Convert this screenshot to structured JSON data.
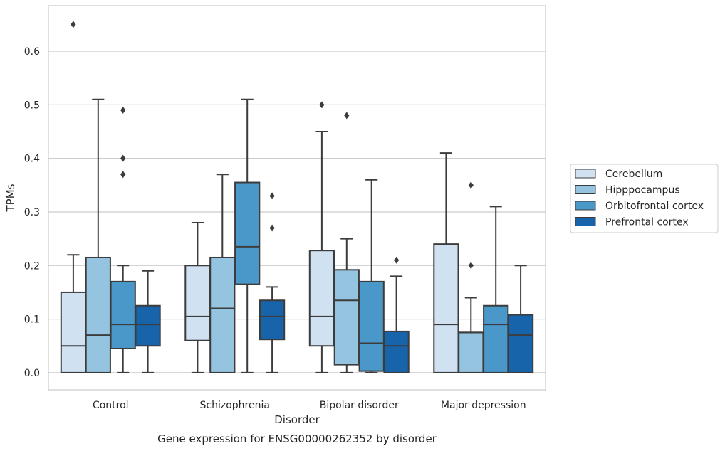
{
  "chart_data": {
    "type": "box",
    "title": "",
    "caption": "Gene expression for ENSG00000262352 by disorder",
    "xlabel": "Disorder",
    "ylabel": "TPMs",
    "ylim": [
      -0.032,
      0.685
    ],
    "yticks": [
      "0.0",
      "0.1",
      "0.2",
      "0.3",
      "0.4",
      "0.5",
      "0.6"
    ],
    "grid": "horizontal",
    "legend_position": "right",
    "categories": [
      "Control",
      "Schizophrenia",
      "Bipolar disorder",
      "Major depression"
    ],
    "series": [
      {
        "name": "Cerebellum",
        "color": "#d0e1f2",
        "boxes": [
          {
            "whislo": 0.0,
            "q1": 0.0,
            "med": 0.05,
            "q3": 0.15,
            "whishi": 0.22,
            "fliers": [
              0.65
            ]
          },
          {
            "whislo": 0.0,
            "q1": 0.06,
            "med": 0.105,
            "q3": 0.2,
            "whishi": 0.28,
            "fliers": []
          },
          {
            "whislo": 0.0,
            "q1": 0.05,
            "med": 0.105,
            "q3": 0.228,
            "whishi": 0.45,
            "fliers": [
              0.5
            ]
          },
          {
            "whislo": 0.0,
            "q1": 0.0,
            "med": 0.09,
            "q3": 0.24,
            "whishi": 0.41,
            "fliers": []
          }
        ]
      },
      {
        "name": "Hipppocampus",
        "color": "#94c4df",
        "boxes": [
          {
            "whislo": 0.0,
            "q1": 0.0,
            "med": 0.07,
            "q3": 0.215,
            "whishi": 0.51,
            "fliers": []
          },
          {
            "whislo": 0.0,
            "q1": 0.0,
            "med": 0.12,
            "q3": 0.215,
            "whishi": 0.37,
            "fliers": []
          },
          {
            "whislo": 0.0,
            "q1": 0.015,
            "med": 0.135,
            "q3": 0.192,
            "whishi": 0.25,
            "fliers": [
              0.48
            ]
          },
          {
            "whislo": 0.0,
            "q1": 0.0,
            "med": 0.075,
            "q3": 0.075,
            "whishi": 0.14,
            "fliers": [
              0.35,
              0.2
            ]
          }
        ]
      },
      {
        "name": "Orbitofrontal cortex",
        "color": "#4a98c9",
        "boxes": [
          {
            "whislo": 0.0,
            "q1": 0.045,
            "med": 0.09,
            "q3": 0.17,
            "whishi": 0.2,
            "fliers": [
              0.49,
              0.4,
              0.37
            ]
          },
          {
            "whislo": 0.0,
            "q1": 0.165,
            "med": 0.235,
            "q3": 0.355,
            "whishi": 0.51,
            "fliers": []
          },
          {
            "whislo": 0.0,
            "q1": 0.003,
            "med": 0.055,
            "q3": 0.17,
            "whishi": 0.36,
            "fliers": []
          },
          {
            "whislo": 0.0,
            "q1": 0.0,
            "med": 0.09,
            "q3": 0.125,
            "whishi": 0.31,
            "fliers": []
          }
        ]
      },
      {
        "name": "Prefrontal cortex",
        "color": "#1764ab",
        "boxes": [
          {
            "whislo": 0.0,
            "q1": 0.05,
            "med": 0.09,
            "q3": 0.125,
            "whishi": 0.19,
            "fliers": []
          },
          {
            "whislo": 0.0,
            "q1": 0.062,
            "med": 0.105,
            "q3": 0.135,
            "whishi": 0.16,
            "fliers": [
              0.33,
              0.27
            ]
          },
          {
            "whislo": 0.0,
            "q1": 0.0,
            "med": 0.05,
            "q3": 0.077,
            "whishi": 0.18,
            "fliers": [
              0.21
            ]
          },
          {
            "whislo": 0.0,
            "q1": 0.0,
            "med": 0.07,
            "q3": 0.108,
            "whishi": 0.2,
            "fliers": []
          }
        ]
      }
    ]
  }
}
